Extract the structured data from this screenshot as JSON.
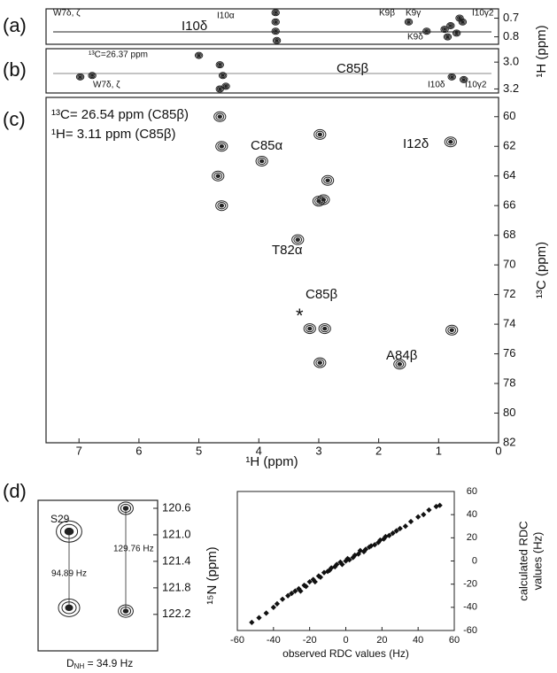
{
  "chart_data": [
    {
      "type": "contour",
      "panel": "(a)",
      "xlim": [
        7.55,
        0
      ],
      "ylim": [
        0.65,
        0.84
      ],
      "yticks": [
        0.7,
        0.8
      ],
      "ylabel": "¹H (ppm)",
      "annotations": [
        "W7δ, ζ",
        "I10δ",
        "I10α",
        "K9β",
        "K9γ",
        "K9δ",
        "I10γ2"
      ],
      "peaks": {
        "x": [
          3.72,
          3.72,
          3.72,
          3.7,
          0.9,
          0.8,
          0.7,
          0.6,
          0.85,
          0.65,
          1.5,
          1.2
        ],
        "y": [
          0.67,
          0.72,
          0.77,
          0.82,
          0.76,
          0.74,
          0.78,
          0.72,
          0.8,
          0.7,
          0.72,
          0.77
        ]
      }
    },
    {
      "type": "contour",
      "panel": "(b)",
      "xlim": [
        7.55,
        0
      ],
      "ylim": [
        2.9,
        3.23
      ],
      "yticks": [
        {
          "value": 3,
          "label": "3.0"
        },
        3.2
      ],
      "annotations": [
        "¹³C=26.37 ppm",
        "C85β",
        "W7δ, ζ",
        "I10δ",
        "I10γ2"
      ],
      "peaks": {
        "x": [
          6.98,
          6.78,
          4.65,
          4.6,
          4.55,
          4.65,
          0.78,
          0.58,
          5.0
        ],
        "y": [
          3.11,
          3.1,
          3.02,
          3.1,
          3.18,
          3.2,
          3.11,
          3.13,
          2.95
        ]
      }
    },
    {
      "type": "contour",
      "panel": "(c)",
      "xlim": [
        7.55,
        0
      ],
      "ylim": [
        58.7,
        82
      ],
      "xticks": [
        7,
        6,
        5,
        4,
        3,
        2,
        1,
        0
      ],
      "yticks": [
        60,
        62,
        64,
        66,
        68,
        70,
        72,
        74,
        76,
        78,
        80,
        82
      ],
      "xlabel": "¹H (ppm)",
      "ylabel": "¹³C (ppm)",
      "annotations": [
        "¹³C= 26.54 ppm (C85β)",
        "¹H= 3.11 ppm (C85β)",
        "C85α",
        "I12δ",
        "T82α",
        "C85β",
        "*",
        "A84β"
      ],
      "peaks": {
        "x": [
          3.95,
          2.98,
          2.85,
          3.0,
          2.92,
          3.35,
          3.15,
          2.9,
          0.78,
          2.98,
          1.65,
          0.8,
          4.65,
          4.62,
          4.68,
          4.62
        ],
        "y": [
          63.0,
          61.2,
          64.3,
          65.7,
          65.6,
          68.3,
          74.3,
          74.3,
          74.4,
          76.6,
          76.7,
          61.7,
          60,
          62,
          64,
          66
        ]
      }
    },
    {
      "type": "strip",
      "panel": "(d)",
      "ylim": [
        120.48,
        122.75
      ],
      "yticks": [
        120.6,
        {
          "value": 121,
          "label": "121.0"
        },
        121.4,
        121.8,
        122.2
      ],
      "ylabel": "¹⁵N (ppm)",
      "annotations": [
        "S29",
        "94.89 Hz",
        "129.76 Hz"
      ],
      "coupling": {
        "main": "D",
        "sub": "NH",
        "rest": " = 34.9 Hz"
      },
      "peaks": {
        "y": [
          120.95,
          122.1,
          120.6,
          122.15
        ]
      }
    },
    {
      "type": "scatter",
      "xlim": [
        -60,
        60
      ],
      "ylim": [
        -60,
        60
      ],
      "xticks": [
        -60,
        -40,
        -20,
        0,
        20,
        40,
        60
      ],
      "yticks": [
        -60,
        -40,
        -20,
        0,
        20,
        40,
        60
      ],
      "xlabel": "observed RDC values (Hz)",
      "ylabel": [
        "calculated RDC",
        "values (Hz)"
      ],
      "color": "#111111",
      "x": [
        -52,
        -48,
        -44,
        -40,
        -38,
        -35,
        -32,
        -30,
        -28,
        -26,
        -25,
        -23,
        -22,
        -20,
        -18,
        -17,
        -15,
        -14,
        -12,
        -10,
        -9,
        -8,
        -6,
        -5,
        -3,
        -2,
        0,
        1,
        2,
        4,
        5,
        7,
        8,
        10,
        11,
        13,
        14,
        16,
        18,
        19,
        21,
        22,
        24,
        26,
        28,
        30,
        33,
        36,
        40,
        43,
        46,
        50,
        52
      ],
      "values": [
        -53,
        -49,
        -45,
        -40,
        -37,
        -33,
        -30,
        -28,
        -26,
        -24,
        -26,
        -21,
        -22,
        -18,
        -16,
        -18,
        -13,
        -14,
        -10,
        -9,
        -8,
        -6,
        -5,
        -3,
        -1,
        -3,
        0,
        2,
        1,
        3,
        5,
        6,
        9,
        8,
        10,
        12,
        13,
        14,
        16,
        18,
        19,
        21,
        22,
        24,
        26,
        28,
        30,
        34,
        38,
        40,
        44,
        47,
        48
      ]
    }
  ]
}
